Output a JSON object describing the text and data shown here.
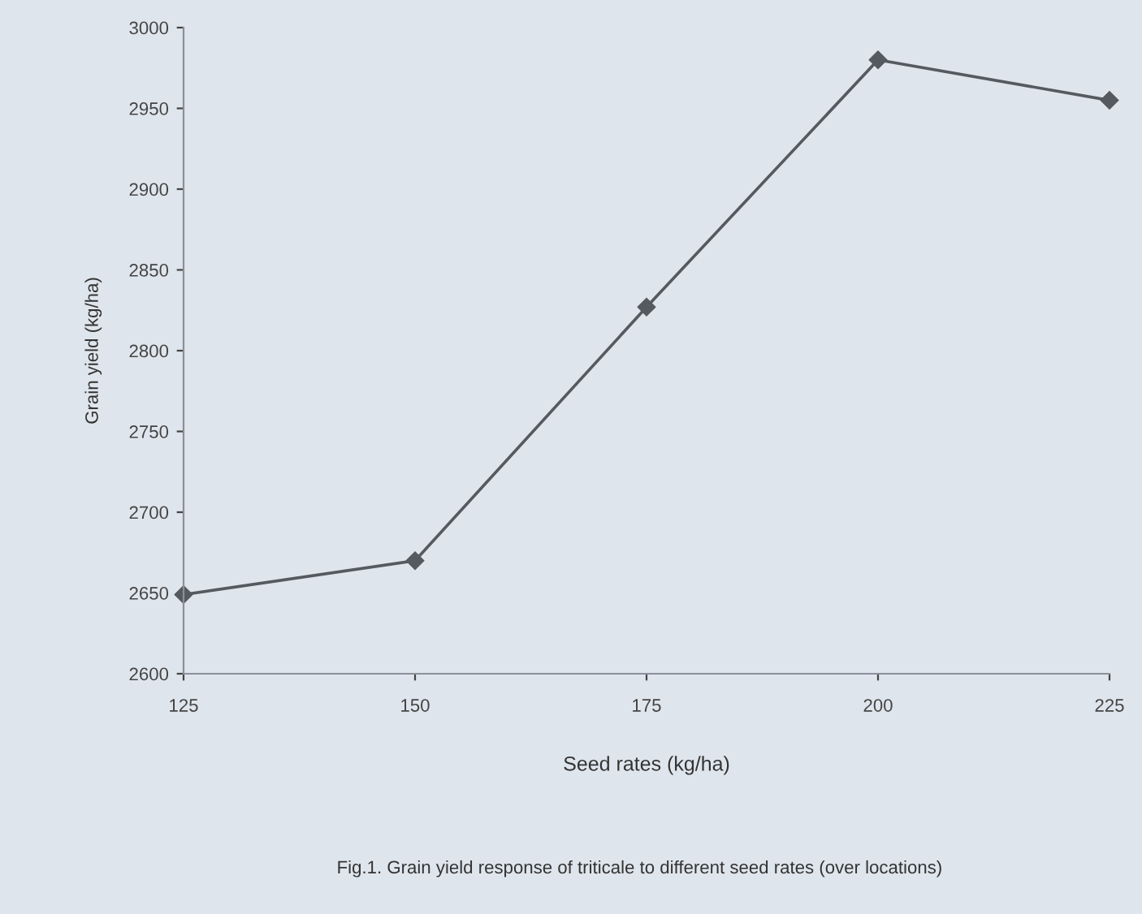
{
  "chart_data": {
    "type": "line",
    "x": [
      125,
      150,
      175,
      200,
      225
    ],
    "series": [
      {
        "color": "#555a60",
        "values": [
          2649,
          2670,
          2827,
          2980,
          2955
        ]
      }
    ],
    "xlabel": "Seed rates (kg/ha)",
    "ylabel": "Grain yield (kg/ha)",
    "xlim": [
      125,
      225
    ],
    "xticks": [
      125,
      150,
      175,
      200,
      225
    ],
    "ylim": [
      2600,
      3000
    ],
    "yticks": [
      2600,
      2650,
      2700,
      2750,
      2800,
      2850,
      2900,
      2950,
      3000
    ],
    "marker": "diamond",
    "line_style": "solid",
    "grid": false,
    "legend": false,
    "annotations": [
      "Fig.1. Grain yield response of triticale to different seed rates (over locations)"
    ]
  }
}
